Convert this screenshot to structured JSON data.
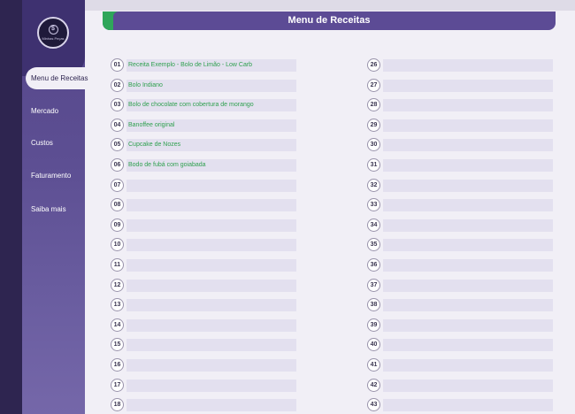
{
  "app": {
    "logo_text": "Minhas Peças",
    "logo_symbol": "$",
    "title": "Menu de Receitas"
  },
  "sidebar": {
    "items": [
      {
        "label": "Menu de Receitas",
        "active": true
      },
      {
        "label": "Mercado"
      },
      {
        "label": "Custos"
      },
      {
        "label": "Faturamento"
      },
      {
        "label": "Saiba mais"
      }
    ]
  },
  "recipes_left": [
    {
      "n": "01",
      "name": "Receita Exemplo - Bolo de Limão - Low Carb"
    },
    {
      "n": "02",
      "name": "Bolo Indiano"
    },
    {
      "n": "03",
      "name": "Bolo de chocolate com cobertura de morango"
    },
    {
      "n": "04",
      "name": "Banoffee original"
    },
    {
      "n": "05",
      "name": "Cupcake de Nozes"
    },
    {
      "n": "06",
      "name": "Bodo de fubá com goiabada"
    },
    {
      "n": "07",
      "name": ""
    },
    {
      "n": "08",
      "name": ""
    },
    {
      "n": "09",
      "name": ""
    },
    {
      "n": "10",
      "name": ""
    },
    {
      "n": "11",
      "name": ""
    },
    {
      "n": "12",
      "name": ""
    },
    {
      "n": "13",
      "name": ""
    },
    {
      "n": "14",
      "name": ""
    },
    {
      "n": "15",
      "name": ""
    },
    {
      "n": "16",
      "name": ""
    },
    {
      "n": "17",
      "name": ""
    },
    {
      "n": "18",
      "name": ""
    }
  ],
  "recipes_right": [
    {
      "n": "26",
      "name": ""
    },
    {
      "n": "27",
      "name": ""
    },
    {
      "n": "28",
      "name": ""
    },
    {
      "n": "29",
      "name": ""
    },
    {
      "n": "30",
      "name": ""
    },
    {
      "n": "31",
      "name": ""
    },
    {
      "n": "32",
      "name": ""
    },
    {
      "n": "33",
      "name": ""
    },
    {
      "n": "34",
      "name": ""
    },
    {
      "n": "35",
      "name": ""
    },
    {
      "n": "36",
      "name": ""
    },
    {
      "n": "37",
      "name": ""
    },
    {
      "n": "38",
      "name": ""
    },
    {
      "n": "39",
      "name": ""
    },
    {
      "n": "40",
      "name": ""
    },
    {
      "n": "41",
      "name": ""
    },
    {
      "n": "42",
      "name": ""
    },
    {
      "n": "43",
      "name": ""
    }
  ]
}
